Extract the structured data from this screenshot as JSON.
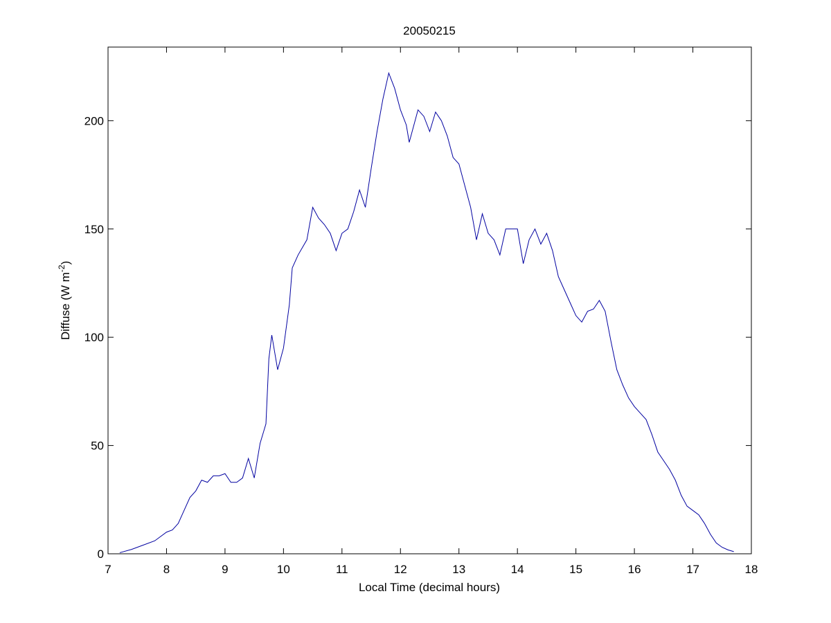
{
  "chart_data": {
    "type": "line",
    "title": "20050215",
    "xlabel": "Local Time (decimal hours)",
    "ylabel_parts": [
      "Diffuse (W m",
      "-2",
      ")"
    ],
    "x": [
      7.2,
      7.4,
      7.6,
      7.8,
      8.0,
      8.1,
      8.2,
      8.3,
      8.4,
      8.5,
      8.6,
      8.7,
      8.8,
      8.9,
      9.0,
      9.1,
      9.2,
      9.3,
      9.4,
      9.5,
      9.6,
      9.7,
      9.75,
      9.8,
      9.9,
      10.0,
      10.1,
      10.15,
      10.25,
      10.4,
      10.5,
      10.6,
      10.7,
      10.8,
      10.9,
      11.0,
      11.1,
      11.2,
      11.3,
      11.4,
      11.5,
      11.6,
      11.7,
      11.8,
      11.9,
      12.0,
      12.1,
      12.15,
      12.3,
      12.4,
      12.5,
      12.6,
      12.7,
      12.8,
      12.9,
      13.0,
      13.1,
      13.2,
      13.3,
      13.4,
      13.5,
      13.6,
      13.7,
      13.8,
      13.9,
      14.0,
      14.1,
      14.2,
      14.3,
      14.4,
      14.5,
      14.6,
      14.7,
      14.8,
      14.9,
      15.0,
      15.1,
      15.2,
      15.3,
      15.4,
      15.5,
      15.6,
      15.7,
      15.8,
      15.9,
      16.0,
      16.1,
      16.2,
      16.3,
      16.4,
      16.5,
      16.6,
      16.7,
      16.8,
      16.9,
      17.0,
      17.1,
      17.2,
      17.3,
      17.4,
      17.5,
      17.6,
      17.7
    ],
    "series": [
      {
        "name": "Diffuse",
        "color": "#0000a0",
        "values": [
          0.5,
          2,
          4,
          6,
          10,
          11,
          14,
          20,
          26,
          29,
          34,
          33,
          36,
          36,
          37,
          33,
          33,
          35,
          44,
          35,
          51,
          60,
          90,
          101,
          85,
          95,
          115,
          132,
          138,
          145,
          160,
          155,
          152,
          148,
          140,
          148,
          150,
          158,
          168,
          160,
          178,
          195,
          210,
          222,
          215,
          205,
          198,
          190,
          205,
          202,
          195,
          204,
          200,
          193,
          183,
          180,
          170,
          160,
          145,
          157,
          148,
          145,
          138,
          150,
          150,
          150,
          134,
          145,
          150,
          143,
          148,
          140,
          128,
          122,
          116,
          110,
          107,
          112,
          113,
          117,
          112,
          98,
          85,
          78,
          72,
          68,
          65,
          62,
          55,
          47,
          43,
          39,
          34,
          27,
          22,
          20,
          18,
          14,
          9,
          5,
          3,
          1.8,
          1
        ]
      }
    ],
    "xlim": [
      7,
      18
    ],
    "xticks": [
      7,
      8,
      9,
      10,
      11,
      12,
      13,
      14,
      15,
      16,
      17,
      18
    ],
    "ylim": [
      0,
      234
    ],
    "yticks": [
      0,
      50,
      100,
      150,
      200
    ]
  }
}
